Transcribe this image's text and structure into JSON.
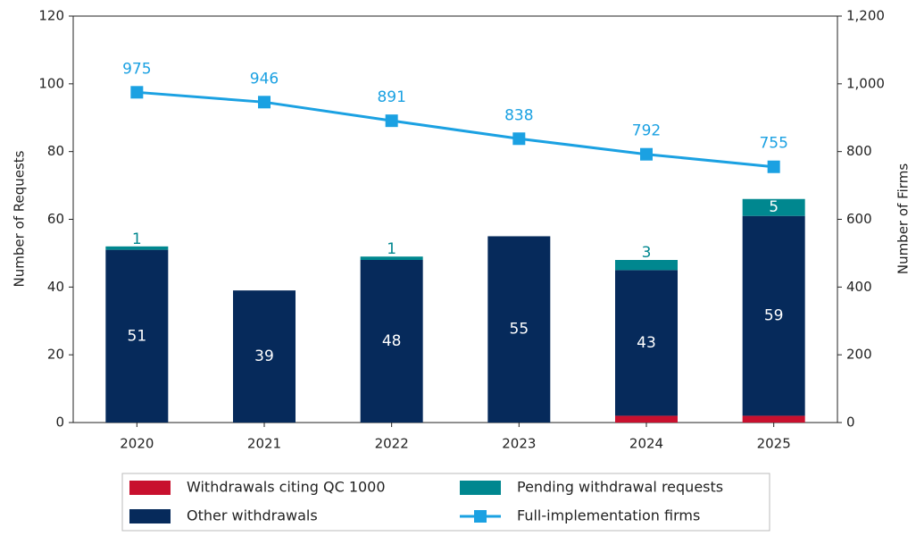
{
  "chart_data": {
    "type": "bar",
    "categories": [
      "2020",
      "2021",
      "2022",
      "2023",
      "2024",
      "2025"
    ],
    "stacked": true,
    "y_label": "Number of Requests",
    "y2_label": "Number of Firms",
    "ylim": [
      0,
      120
    ],
    "yticks": [
      0,
      20,
      40,
      60,
      80,
      100,
      120
    ],
    "y2lim": [
      0,
      1200
    ],
    "y2ticks": [
      0,
      200,
      400,
      600,
      800,
      {
        "value": 1000,
        "label": "1,000"
      },
      {
        "value": 1200,
        "label": "1,200"
      }
    ],
    "series": [
      {
        "name": "Withdrawals citing QC 1000",
        "color": "#c8102e",
        "values": [
          null,
          null,
          null,
          null,
          2,
          2
        ]
      },
      {
        "name": "Other withdrawals",
        "color": "#062a5b",
        "values": [
          51,
          39,
          48,
          55,
          43,
          59
        ]
      },
      {
        "name": "Pending withdrawal requests",
        "color": "#00878f",
        "values": [
          1,
          null,
          1,
          null,
          3,
          5
        ]
      },
      {
        "name": "Full-implementation firms",
        "color": "#1ba1e2",
        "type": "line",
        "axis": "y2",
        "values": [
          975,
          946,
          891,
          838,
          792,
          755
        ]
      }
    ]
  }
}
